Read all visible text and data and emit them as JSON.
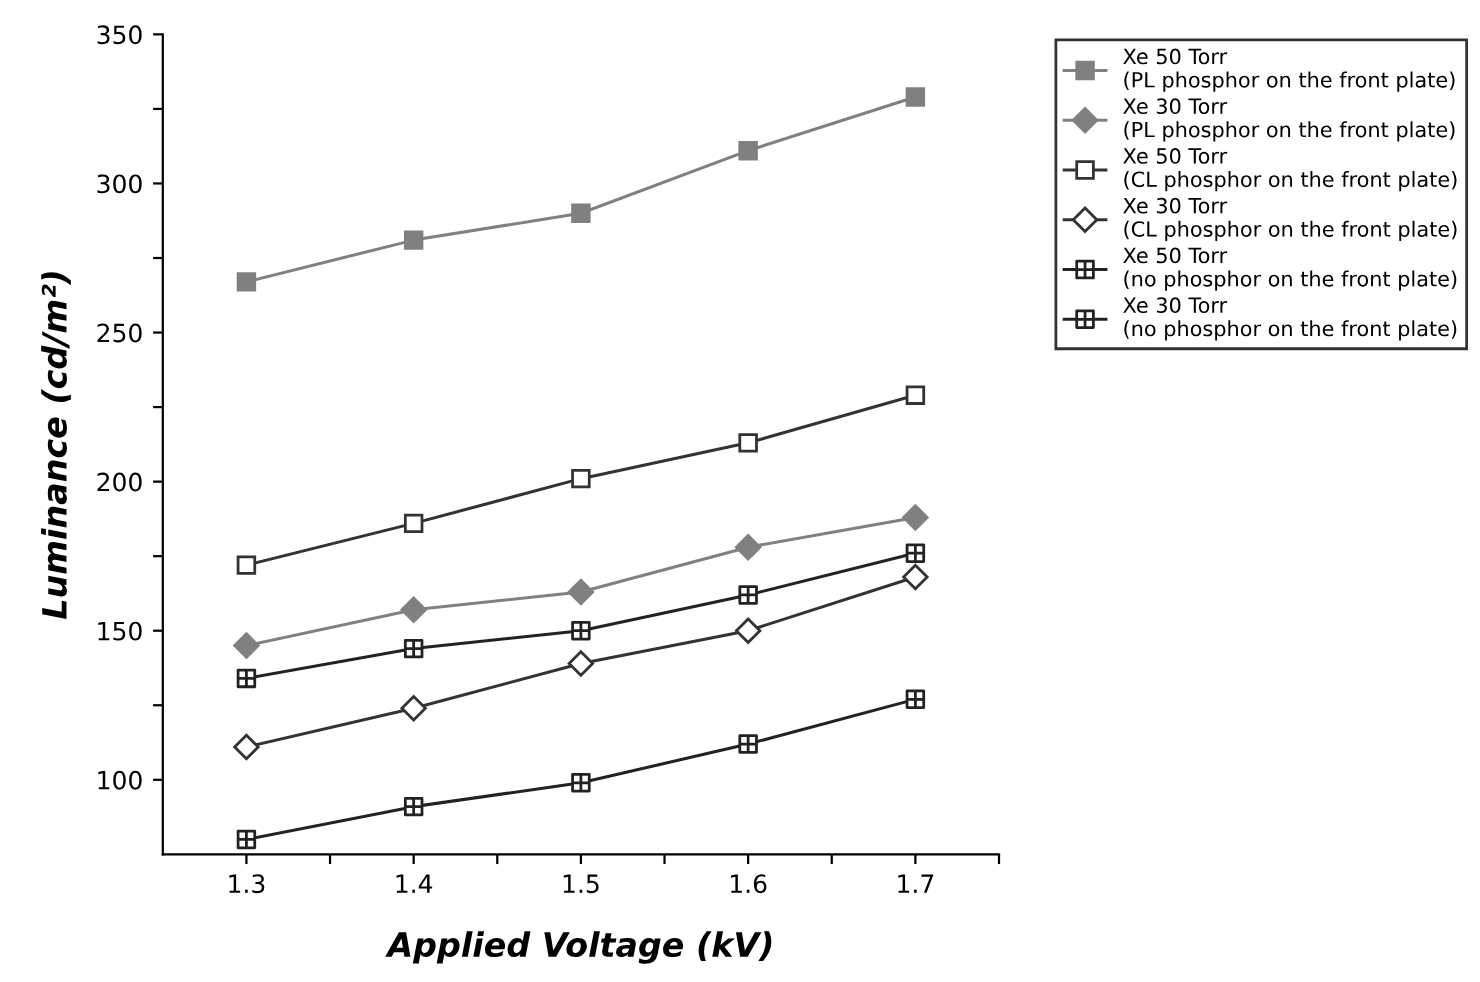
{
  "chart_data": {
    "type": "line",
    "xlabel": "Applied Voltage (kV)",
    "ylabel": "Luminance (cd/m²)",
    "x": [
      1.3,
      1.4,
      1.5,
      1.6,
      1.7
    ],
    "xlim": [
      1.25,
      1.75
    ],
    "xticks": [
      1.3,
      {
        "value": 1.35,
        "label": null
      },
      1.4,
      {
        "value": 1.45,
        "label": null
      },
      1.5,
      {
        "value": 1.55,
        "label": null
      },
      1.6,
      {
        "value": 1.65,
        "label": null
      },
      1.7,
      {
        "value": 1.75,
        "label": null
      }
    ],
    "ylim": [
      75,
      350
    ],
    "yticks": [
      100,
      {
        "value": 125,
        "label": null
      },
      150,
      {
        "value": 175,
        "label": null
      },
      200,
      {
        "value": 225,
        "label": null
      },
      250,
      {
        "value": 275,
        "label": null
      },
      300,
      {
        "value": 325,
        "label": null
      },
      350
    ],
    "grid": false,
    "legend": "top right",
    "line_style": "solid",
    "series": [
      {
        "name": "Xe 50 Torr\n(PL phosphor on the front plate)",
        "color": "#808080",
        "marker": "square",
        "values": [
          267,
          281,
          290,
          311,
          329
        ]
      },
      {
        "name": "Xe 30 Torr\n(PL phosphor on the front plate)",
        "color": "#808080",
        "marker": "diamond",
        "values": [
          145,
          157,
          163,
          178,
          188
        ]
      },
      {
        "name": "Xe 50 Torr\n(CL phosphor on the front plate)",
        "color": "#333333",
        "marker": "square-open",
        "values": [
          172,
          186,
          201,
          213,
          229
        ]
      },
      {
        "name": "Xe 30 Torr\n(CL phosphor on the front plate)",
        "color": "#333333",
        "marker": "diamond-open",
        "values": [
          111,
          124,
          139,
          150,
          168
        ]
      },
      {
        "name": "Xe 50 Torr\n(no phosphor on the front plate)",
        "color": "#222222",
        "marker": "cross",
        "values": [
          134,
          144,
          150,
          162,
          176
        ]
      },
      {
        "name": "Xe 30 Torr\n(no phosphor on the front plate)",
        "color": "#222222",
        "marker": "cross",
        "values": [
          80,
          91,
          99,
          112,
          127
        ]
      }
    ]
  }
}
